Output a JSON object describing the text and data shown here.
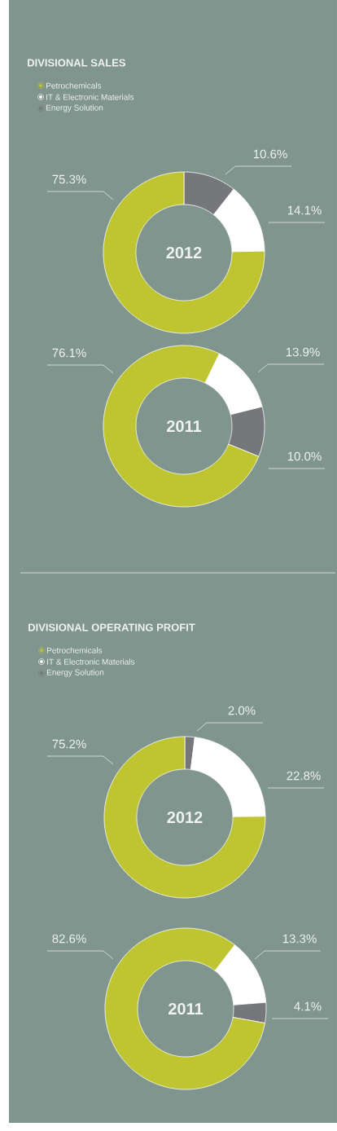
{
  "chart_data": [
    {
      "type": "donut",
      "title": "DIVISIONAL SALES",
      "categories": [
        "Petrochemicals",
        "IT & Electronic Materials",
        "Energy Solution"
      ],
      "colors": [
        "#bfc431",
        "#ffffff",
        "#76777b"
      ],
      "legend": "top left",
      "series": [
        {
          "name": "2012",
          "values": [
            75.3,
            14.1,
            10.6
          ],
          "value_labels": [
            "75.3%",
            "14.1%",
            "10.6%"
          ]
        },
        {
          "name": "2011",
          "values": [
            76.1,
            13.9,
            10.0
          ],
          "value_labels": [
            "76.1%",
            "13.9%",
            "10.0%"
          ]
        }
      ]
    },
    {
      "type": "donut",
      "title": "DIVISIONAL OPERATING PROFIT",
      "categories": [
        "Petrochemicals",
        "IT & Electronic Materials",
        "Energy Solution"
      ],
      "colors": [
        "#bfc431",
        "#ffffff",
        "#76777b"
      ],
      "legend": "top left",
      "series": [
        {
          "name": "2012",
          "values": [
            75.2,
            22.8,
            2.0
          ],
          "value_labels": [
            "75.2%",
            "22.8%",
            "2.0%"
          ]
        },
        {
          "name": "2011",
          "values": [
            82.6,
            13.3,
            4.1
          ],
          "value_labels": [
            "82.6%",
            "13.3%",
            "4.1%"
          ]
        }
      ]
    }
  ]
}
